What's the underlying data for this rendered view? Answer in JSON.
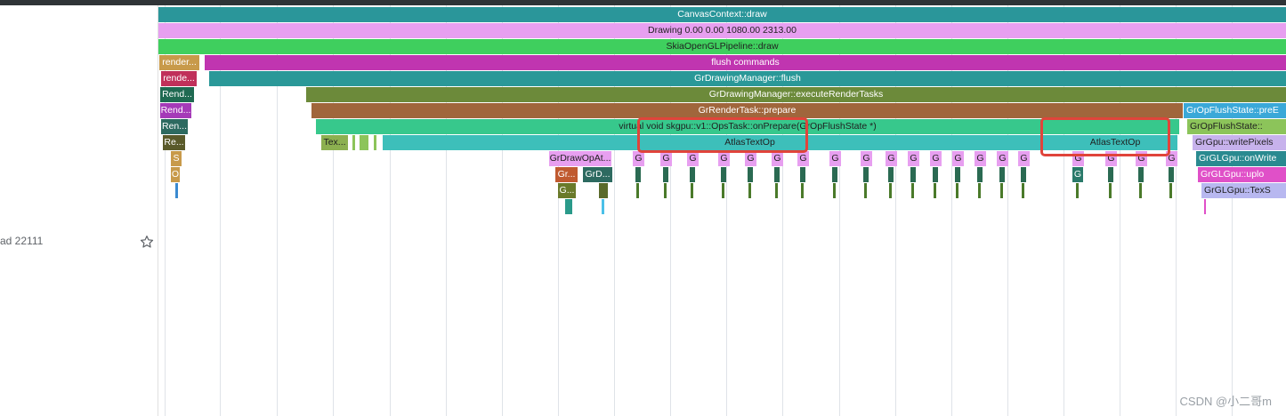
{
  "sidebar": {
    "thread_label": "ad 22111"
  },
  "watermark": "CSDN @小二哥m",
  "colors": {
    "canvas": "#2a969a",
    "drawing": "#e79ff0",
    "skia": "#3fcf5e",
    "flush": "#c035b0",
    "drawmgr": "#2a9898",
    "exec": "#6c8a3a",
    "prepare": "#a0663c",
    "onprepare": "#37c88c",
    "atlas": "#3dbfba",
    "highlight": "#e0443b"
  },
  "slices": {
    "canvas_draw": "CanvasContext::draw",
    "drawing": "Drawing  0.00  0.00 1080.00 2313.00",
    "skia_pipeline": "SkiaOpenGLPipeline::draw",
    "flush_commands": "flush commands",
    "gr_flush": "GrDrawingManager::flush",
    "exec_tasks": "GrDrawingManager::executeRenderTasks",
    "render_prepare": "GrRenderTask::prepare",
    "ops_prepare": "virtual void skgpu::v1::OpsTask::onPrepare(GrOpFlushState *)",
    "atlas_1": "AtlasTextOp",
    "atlas_2": "AtlasTextOp",
    "pre_execute": "GrOpFlushState::preE",
    "flush_state": "GrOpFlushState::",
    "write_pixels": "GrGpu::writePixels",
    "gl_onwrite": "GrGLGpu::onWrite",
    "gl_upload": "GrGLGpu::uplo",
    "gl_texs": "GrGLGpu::TexS",
    "left_render_1": "render...",
    "left_render_2": "rende...",
    "left_render_3": "Rend...",
    "left_render_4": "Rend...",
    "left_render_5": "Ren...",
    "left_render_6": "Re...",
    "left_s": "S",
    "left_o": "O",
    "tex": "Tex...",
    "draw_op_at": "GrDrawOpAt...",
    "gr_1": "Gr...",
    "gr_d": "GrD...",
    "g_dots": "G...",
    "g": "G"
  }
}
